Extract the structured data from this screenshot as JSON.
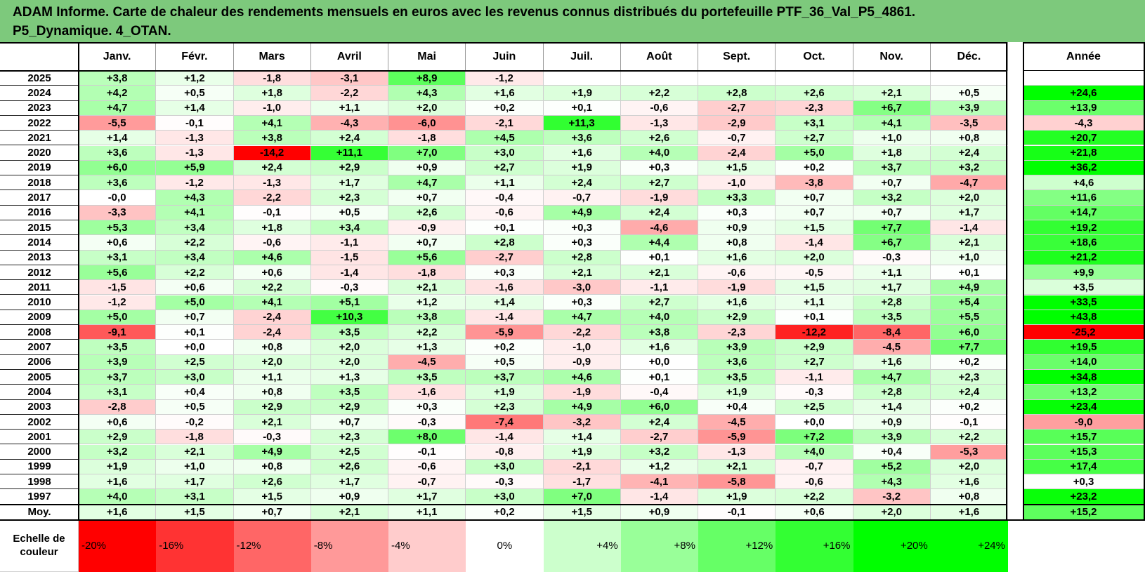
{
  "title": {
    "line1": "ADAM Informe. Carte de chaleur des rendements mensuels en euros avec les revenus connus distribués du portefeuille PTF_36_Val_P5_4861.",
    "line2": "P5_Dynamique. 4_OTAN."
  },
  "colors": {
    "title_bg": "#7dc97c",
    "negative": "#ff0000",
    "positive": "#00ff00",
    "neutral": "#ffffff"
  },
  "chart_data": {
    "type": "heatmap",
    "months": [
      "Janv.",
      "Févr.",
      "Mars",
      "Avril",
      "Mai",
      "Juin",
      "Juil.",
      "Août",
      "Sept.",
      "Oct.",
      "Nov.",
      "Déc."
    ],
    "year_header": "Année",
    "avg_label": "Moy.",
    "scale_label": [
      "Echelle de",
      "couleur"
    ],
    "scale_steps": [
      "-20%",
      "-16%",
      "-12%",
      "-8%",
      "-4%",
      "0%",
      "+4%",
      "+8%",
      "+12%",
      "+16%",
      "+20%",
      "+24%"
    ],
    "rows": [
      {
        "year": "2025",
        "m": [
          "+3,8",
          "+1,2",
          "-1,8",
          "-3,1",
          "+8,9",
          "-1,2",
          "",
          "",
          "",
          "",
          "",
          ""
        ],
        "y": ""
      },
      {
        "year": "2024",
        "m": [
          "+4,2",
          "+0,5",
          "+1,8",
          "-2,2",
          "+4,3",
          "+1,6",
          "+1,9",
          "+2,2",
          "+2,8",
          "+2,6",
          "+2,1",
          "+0,5"
        ],
        "y": "+24,6"
      },
      {
        "year": "2023",
        "m": [
          "+4,7",
          "+1,4",
          "-1,0",
          "+1,1",
          "+2,0",
          "+0,2",
          "+0,1",
          "-0,6",
          "-2,7",
          "-2,3",
          "+6,7",
          "+3,9"
        ],
        "y": "+13,9"
      },
      {
        "year": "2022",
        "m": [
          "-5,5",
          "-0,1",
          "+4,1",
          "-4,3",
          "-6,0",
          "-2,1",
          "+11,3",
          "-1,3",
          "-2,9",
          "+3,1",
          "+4,1",
          "-3,5"
        ],
        "y": "-4,3"
      },
      {
        "year": "2021",
        "m": [
          "+1,4",
          "-1,3",
          "+3,8",
          "+2,4",
          "-1,8",
          "+4,5",
          "+3,6",
          "+2,6",
          "-0,7",
          "+2,7",
          "+1,0",
          "+0,8"
        ],
        "y": "+20,7"
      },
      {
        "year": "2020",
        "m": [
          "+3,6",
          "-1,3",
          "-14,2",
          "+11,1",
          "+7,0",
          "+3,0",
          "+1,6",
          "+4,0",
          "-2,4",
          "+5,0",
          "+1,8",
          "+2,4"
        ],
        "y": "+21,8"
      },
      {
        "year": "2019",
        "m": [
          "+6,0",
          "+5,9",
          "+2,4",
          "+2,9",
          "+0,9",
          "+2,7",
          "+1,9",
          "+0,3",
          "+1,5",
          "+0,2",
          "+3,7",
          "+3,2"
        ],
        "y": "+36,2"
      },
      {
        "year": "2018",
        "m": [
          "+3,6",
          "-1,2",
          "-1,3",
          "+1,7",
          "+4,7",
          "+1,1",
          "+2,4",
          "+2,7",
          "-1,0",
          "-3,8",
          "+0,7",
          "-4,7"
        ],
        "y": "+4,6"
      },
      {
        "year": "2017",
        "m": [
          "-0,0",
          "+4,3",
          "-2,2",
          "+2,3",
          "+0,7",
          "-0,4",
          "-0,7",
          "-1,9",
          "+3,3",
          "+0,7",
          "+3,2",
          "+2,0"
        ],
        "y": "+11,6"
      },
      {
        "year": "2016",
        "m": [
          "-3,3",
          "+4,1",
          "-0,1",
          "+0,5",
          "+2,6",
          "-0,6",
          "+4,9",
          "+2,4",
          "+0,3",
          "+0,7",
          "+0,7",
          "+1,7"
        ],
        "y": "+14,7"
      },
      {
        "year": "2015",
        "m": [
          "+5,3",
          "+3,4",
          "+1,8",
          "+3,4",
          "-0,9",
          "+0,1",
          "+0,3",
          "-4,6",
          "+0,9",
          "+1,5",
          "+7,7",
          "-1,4"
        ],
        "y": "+19,2"
      },
      {
        "year": "2014",
        "m": [
          "+0,6",
          "+2,2",
          "-0,6",
          "-1,1",
          "+0,7",
          "+2,8",
          "+0,3",
          "+4,4",
          "+0,8",
          "-1,4",
          "+6,7",
          "+2,1"
        ],
        "y": "+18,6"
      },
      {
        "year": "2013",
        "m": [
          "+3,1",
          "+3,4",
          "+4,6",
          "-1,5",
          "+5,6",
          "-2,7",
          "+2,8",
          "+0,1",
          "+1,6",
          "+2,0",
          "-0,3",
          "+1,0"
        ],
        "y": "+21,2"
      },
      {
        "year": "2012",
        "m": [
          "+5,6",
          "+2,2",
          "+0,6",
          "-1,4",
          "-1,8",
          "+0,3",
          "+2,1",
          "+2,1",
          "-0,6",
          "-0,5",
          "+1,1",
          "+0,1"
        ],
        "y": "+9,9"
      },
      {
        "year": "2011",
        "m": [
          "-1,5",
          "+0,6",
          "+2,2",
          "-0,3",
          "+2,1",
          "-1,6",
          "-3,0",
          "-1,1",
          "-1,9",
          "+1,5",
          "+1,7",
          "+4,9"
        ],
        "y": "+3,5"
      },
      {
        "year": "2010",
        "m": [
          "-1,2",
          "+5,0",
          "+4,1",
          "+5,1",
          "+1,2",
          "+1,4",
          "+0,3",
          "+2,7",
          "+1,6",
          "+1,1",
          "+2,8",
          "+5,4"
        ],
        "y": "+33,5"
      },
      {
        "year": "2009",
        "m": [
          "+5,0",
          "+0,7",
          "-2,4",
          "+10,3",
          "+3,8",
          "-1,4",
          "+4,7",
          "+4,0",
          "+2,9",
          "+0,1",
          "+3,5",
          "+5,5"
        ],
        "y": "+43,8"
      },
      {
        "year": "2008",
        "m": [
          "-9,1",
          "+0,1",
          "-2,4",
          "+3,5",
          "+2,2",
          "-5,9",
          "-2,2",
          "+3,8",
          "-2,3",
          "-12,2",
          "-8,4",
          "+6,0"
        ],
        "y": "-25,2"
      },
      {
        "year": "2007",
        "m": [
          "+3,5",
          "+0,0",
          "+0,8",
          "+2,0",
          "+1,3",
          "+0,2",
          "-1,0",
          "+1,6",
          "+3,9",
          "+2,9",
          "-4,5",
          "+7,7"
        ],
        "y": "+19,5"
      },
      {
        "year": "2006",
        "m": [
          "+3,9",
          "+2,5",
          "+2,0",
          "+2,0",
          "-4,5",
          "+0,5",
          "-0,9",
          "+0,0",
          "+3,6",
          "+2,7",
          "+1,6",
          "+0,2"
        ],
        "y": "+14,0"
      },
      {
        "year": "2005",
        "m": [
          "+3,7",
          "+3,0",
          "+1,1",
          "+1,3",
          "+3,5",
          "+3,7",
          "+4,6",
          "+0,1",
          "+3,5",
          "-1,1",
          "+4,7",
          "+2,3"
        ],
        "y": "+34,8"
      },
      {
        "year": "2004",
        "m": [
          "+3,1",
          "+0,4",
          "+0,8",
          "+3,5",
          "-1,6",
          "+1,9",
          "-1,9",
          "-0,4",
          "+1,9",
          "-0,3",
          "+2,8",
          "+2,4"
        ],
        "y": "+13,2"
      },
      {
        "year": "2003",
        "m": [
          "-2,8",
          "+0,5",
          "+2,9",
          "+2,9",
          "+0,3",
          "+2,3",
          "+4,9",
          "+6,0",
          "+0,4",
          "+2,5",
          "+1,4",
          "+0,2"
        ],
        "y": "+23,4"
      },
      {
        "year": "2002",
        "m": [
          "+0,6",
          "-0,2",
          "+2,1",
          "+0,7",
          "-0,3",
          "-7,4",
          "-3,2",
          "+2,4",
          "-4,5",
          "+0,0",
          "+0,9",
          "-0,1"
        ],
        "y": "-9,0"
      },
      {
        "year": "2001",
        "m": [
          "+2,9",
          "-1,8",
          "-0,3",
          "+2,3",
          "+8,0",
          "-1,4",
          "+1,4",
          "-2,7",
          "-5,9",
          "+7,2",
          "+3,9",
          "+2,2"
        ],
        "y": "+15,7"
      },
      {
        "year": "2000",
        "m": [
          "+3,2",
          "+2,1",
          "+4,9",
          "+2,5",
          "-0,1",
          "-0,8",
          "+1,9",
          "+3,2",
          "-1,3",
          "+4,0",
          "+0,4",
          "-5,3"
        ],
        "y": "+15,3"
      },
      {
        "year": "1999",
        "m": [
          "+1,9",
          "+1,0",
          "+0,8",
          "+2,6",
          "-0,6",
          "+3,0",
          "-2,1",
          "+1,2",
          "+2,1",
          "-0,7",
          "+5,2",
          "+2,0"
        ],
        "y": "+17,4"
      },
      {
        "year": "1998",
        "m": [
          "+1,6",
          "+1,7",
          "+2,6",
          "+1,7",
          "-0,7",
          "-0,3",
          "-1,7",
          "-4,1",
          "-5,8",
          "-0,6",
          "+4,3",
          "+1,6"
        ],
        "y": "+0,3"
      },
      {
        "year": "1997",
        "m": [
          "+4,0",
          "+3,1",
          "+1,5",
          "+0,9",
          "+1,7",
          "+3,0",
          "+7,0",
          "-1,4",
          "+1,9",
          "+2,2",
          "-3,2",
          "+0,8"
        ],
        "y": "+23,2"
      }
    ],
    "averages": {
      "m": [
        "+1,6",
        "+1,5",
        "+0,7",
        "+2,1",
        "+1,1",
        "+0,2",
        "+1,5",
        "+0,9",
        "-0,1",
        "+0,6",
        "+2,0",
        "+1,6"
      ],
      "y": "+15,2"
    }
  }
}
